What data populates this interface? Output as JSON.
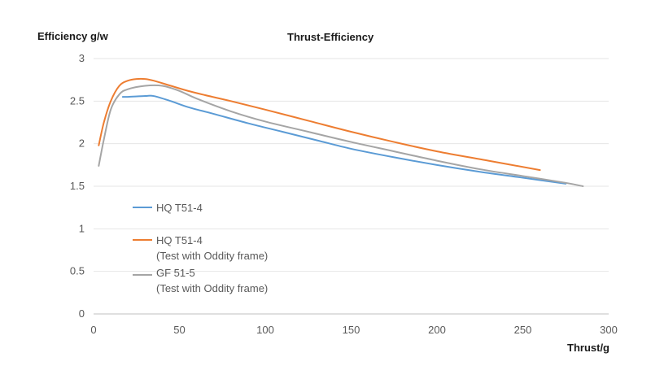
{
  "chart_data": {
    "type": "line",
    "title": "Thrust-Efficiency",
    "ylabel": "Efficiency g/w",
    "xlabel": "Thrust/g",
    "xlim": [
      0,
      300
    ],
    "ylim": [
      0,
      3
    ],
    "xticks": [
      "0",
      "50",
      "100",
      "150",
      "200",
      "250",
      "300"
    ],
    "yticks": [
      "0",
      "0.5",
      "1",
      "1.5",
      "2",
      "2.5",
      "3"
    ],
    "grid": "horizontal",
    "legend_position": "lower-left",
    "series": [
      {
        "name": "HQ T51-4",
        "color": "#5b9bd5",
        "x": [
          17,
          20,
          30,
          35,
          45,
          55,
          70,
          90,
          110,
          130,
          150,
          175,
          200,
          225,
          250,
          275
        ],
        "y": [
          2.55,
          2.55,
          2.56,
          2.56,
          2.5,
          2.43,
          2.35,
          2.24,
          2.14,
          2.04,
          1.94,
          1.84,
          1.75,
          1.67,
          1.6,
          1.53
        ]
      },
      {
        "name": "HQ T51-4",
        "note": "(Test with Oddity frame)",
        "color": "#ed7d31",
        "x": [
          3,
          6,
          10,
          15,
          20,
          25,
          30,
          35,
          45,
          55,
          65,
          80,
          100,
          125,
          150,
          175,
          200,
          230,
          260
        ],
        "y": [
          1.98,
          2.25,
          2.5,
          2.68,
          2.74,
          2.76,
          2.76,
          2.74,
          2.68,
          2.62,
          2.57,
          2.5,
          2.4,
          2.27,
          2.14,
          2.02,
          1.91,
          1.8,
          1.69
        ]
      },
      {
        "name": "GF 51-5",
        "note": "(Test with Oddity frame)",
        "color": "#a5a5a5",
        "x": [
          3,
          6,
          10,
          15,
          20,
          30,
          40,
          50,
          60,
          80,
          100,
          125,
          150,
          175,
          200,
          225,
          250,
          275,
          285
        ],
        "y": [
          1.74,
          2.05,
          2.4,
          2.58,
          2.64,
          2.68,
          2.68,
          2.62,
          2.53,
          2.38,
          2.26,
          2.14,
          2.02,
          1.91,
          1.8,
          1.7,
          1.62,
          1.54,
          1.5
        ]
      }
    ]
  }
}
